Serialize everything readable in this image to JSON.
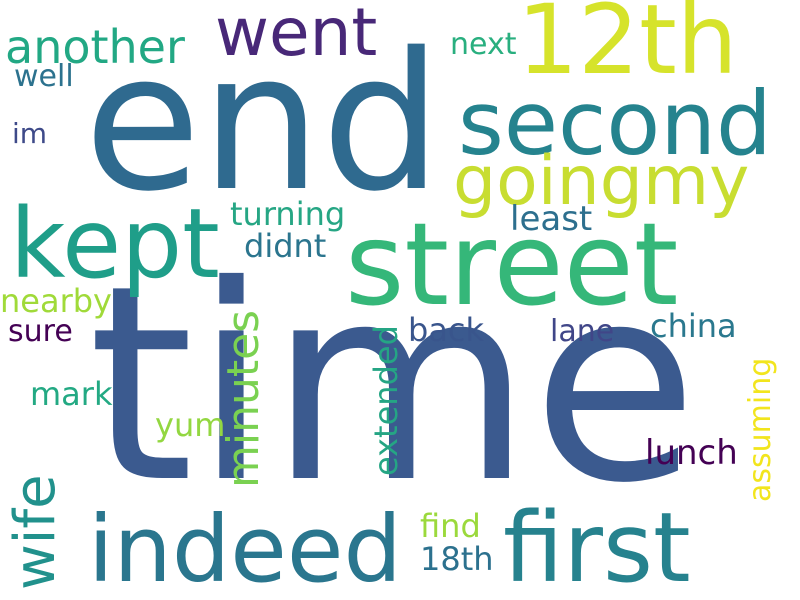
{
  "words": {
    "time": {
      "text": "time",
      "color": "#3b5a8f"
    },
    "end": {
      "text": "end",
      "color": "#2f6a8f"
    },
    "street": {
      "text": "street",
      "color": "#35b779"
    },
    "twelfth": {
      "text": "12th",
      "color": "#d6e32b"
    },
    "second": {
      "text": "second",
      "color": "#25838e"
    },
    "kept": {
      "text": "kept",
      "color": "#1f9e89"
    },
    "indeed": {
      "text": "indeed",
      "color": "#2a768e"
    },
    "first": {
      "text": "first",
      "color": "#26828e"
    },
    "went": {
      "text": "went",
      "color": "#482878"
    },
    "goingmy": {
      "text": "goingmy",
      "color": "#c8dd31"
    },
    "another": {
      "text": "another",
      "color": "#22a884"
    },
    "wife": {
      "text": "wife",
      "color": "#21918c"
    },
    "minutes": {
      "text": "minutes",
      "color": "#7ad151"
    },
    "next": {
      "text": "next",
      "color": "#29af7f"
    },
    "well": {
      "text": "well",
      "color": "#2c728e"
    },
    "im": {
      "text": "im",
      "color": "#3e4a89"
    },
    "turning": {
      "text": "turning",
      "color": "#26a684"
    },
    "least": {
      "text": "least",
      "color": "#2d6f8e"
    },
    "didnt": {
      "text": "didnt",
      "color": "#2b758e"
    },
    "nearby": {
      "text": "nearby",
      "color": "#a0da39"
    },
    "sure": {
      "text": "sure",
      "color": "#440154"
    },
    "back": {
      "text": "back",
      "color": "#39558c"
    },
    "lane": {
      "text": "lane",
      "color": "#404688"
    },
    "china": {
      "text": "china",
      "color": "#2a788e"
    },
    "assuming": {
      "text": "assuming",
      "color": "#f2e51d"
    },
    "mark": {
      "text": "mark",
      "color": "#23a983"
    },
    "extended": {
      "text": "extended",
      "color": "#25a584"
    },
    "yum": {
      "text": "yum",
      "color": "#93d741"
    },
    "lunch": {
      "text": "lunch",
      "color": "#440154"
    },
    "find": {
      "text": "find",
      "color": "#9bd93c"
    },
    "eighteenth": {
      "text": "18th",
      "color": "#2c718e"
    }
  }
}
